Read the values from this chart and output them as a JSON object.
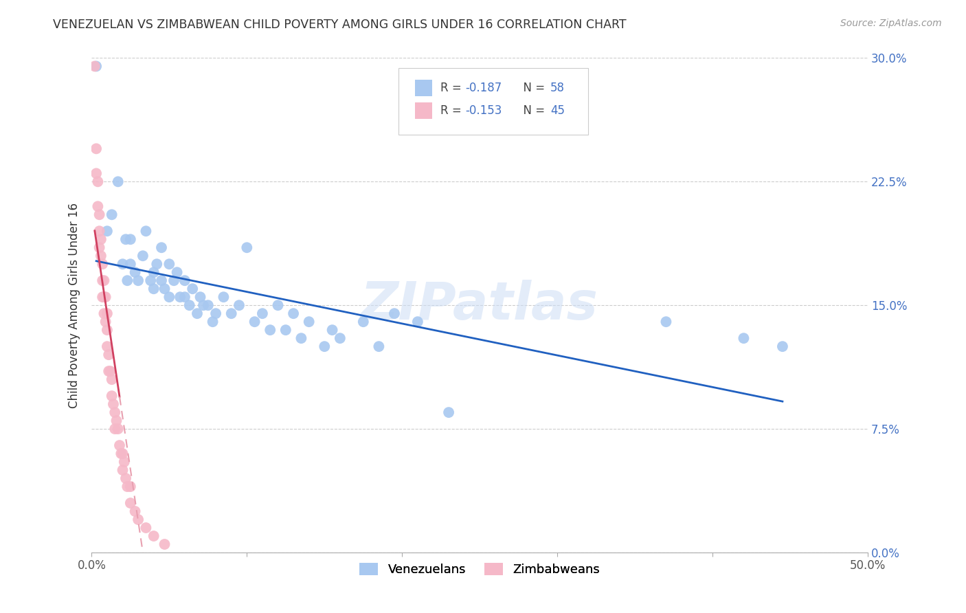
{
  "title": "VENEZUELAN VS ZIMBABWEAN CHILD POVERTY AMONG GIRLS UNDER 16 CORRELATION CHART",
  "source": "Source: ZipAtlas.com",
  "ylabel": "Child Poverty Among Girls Under 16",
  "xlim": [
    0.0,
    0.5
  ],
  "ylim": [
    0.0,
    0.3
  ],
  "xticks": [
    0.0,
    0.1,
    0.2,
    0.3,
    0.4,
    0.5
  ],
  "xtick_labels": [
    "0.0%",
    "",
    "",
    "",
    "",
    "50.0%"
  ],
  "yticks": [
    0.0,
    0.075,
    0.15,
    0.225,
    0.3
  ],
  "ytick_labels_right": [
    "0.0%",
    "7.5%",
    "15.0%",
    "22.5%",
    "30.0%"
  ],
  "blue_color": "#a8c8f0",
  "pink_color": "#f5b8c8",
  "trend_blue_color": "#2060c0",
  "trend_pink_color": "#d04060",
  "trend_pink_dash_color": "#e8a0b0",
  "watermark_text": "ZIPatlas",
  "venezuelan_x": [
    0.003,
    0.01,
    0.013,
    0.017,
    0.02,
    0.022,
    0.023,
    0.025,
    0.025,
    0.028,
    0.03,
    0.033,
    0.035,
    0.038,
    0.04,
    0.04,
    0.042,
    0.045,
    0.045,
    0.047,
    0.05,
    0.05,
    0.053,
    0.055,
    0.057,
    0.06,
    0.06,
    0.063,
    0.065,
    0.068,
    0.07,
    0.072,
    0.075,
    0.078,
    0.08,
    0.085,
    0.09,
    0.095,
    0.1,
    0.105,
    0.11,
    0.115,
    0.12,
    0.125,
    0.13,
    0.135,
    0.14,
    0.15,
    0.155,
    0.16,
    0.175,
    0.185,
    0.195,
    0.21,
    0.23,
    0.37,
    0.42,
    0.445
  ],
  "venezuelan_y": [
    0.295,
    0.195,
    0.205,
    0.225,
    0.175,
    0.19,
    0.165,
    0.19,
    0.175,
    0.17,
    0.165,
    0.18,
    0.195,
    0.165,
    0.16,
    0.17,
    0.175,
    0.185,
    0.165,
    0.16,
    0.175,
    0.155,
    0.165,
    0.17,
    0.155,
    0.165,
    0.155,
    0.15,
    0.16,
    0.145,
    0.155,
    0.15,
    0.15,
    0.14,
    0.145,
    0.155,
    0.145,
    0.15,
    0.185,
    0.14,
    0.145,
    0.135,
    0.15,
    0.135,
    0.145,
    0.13,
    0.14,
    0.125,
    0.135,
    0.13,
    0.14,
    0.125,
    0.145,
    0.14,
    0.085,
    0.14,
    0.13,
    0.125
  ],
  "zimbabwean_x": [
    0.002,
    0.003,
    0.003,
    0.004,
    0.004,
    0.005,
    0.005,
    0.005,
    0.006,
    0.006,
    0.007,
    0.007,
    0.007,
    0.008,
    0.008,
    0.008,
    0.009,
    0.009,
    0.01,
    0.01,
    0.01,
    0.011,
    0.011,
    0.012,
    0.013,
    0.013,
    0.014,
    0.015,
    0.015,
    0.016,
    0.017,
    0.018,
    0.019,
    0.02,
    0.02,
    0.021,
    0.022,
    0.023,
    0.025,
    0.025,
    0.028,
    0.03,
    0.035,
    0.04,
    0.047
  ],
  "zimbabwean_y": [
    0.295,
    0.245,
    0.23,
    0.225,
    0.21,
    0.205,
    0.195,
    0.185,
    0.19,
    0.18,
    0.175,
    0.165,
    0.155,
    0.165,
    0.155,
    0.145,
    0.155,
    0.14,
    0.145,
    0.135,
    0.125,
    0.12,
    0.11,
    0.11,
    0.105,
    0.095,
    0.09,
    0.085,
    0.075,
    0.08,
    0.075,
    0.065,
    0.06,
    0.06,
    0.05,
    0.055,
    0.045,
    0.04,
    0.04,
    0.03,
    0.025,
    0.02,
    0.015,
    0.01,
    0.005
  ],
  "trend_blue_x_start": 0.003,
  "trend_blue_x_end": 0.445,
  "trend_pink_solid_x_start": 0.002,
  "trend_pink_solid_x_end": 0.018,
  "trend_pink_dash_x_start": 0.018,
  "trend_pink_dash_x_end": 0.22
}
